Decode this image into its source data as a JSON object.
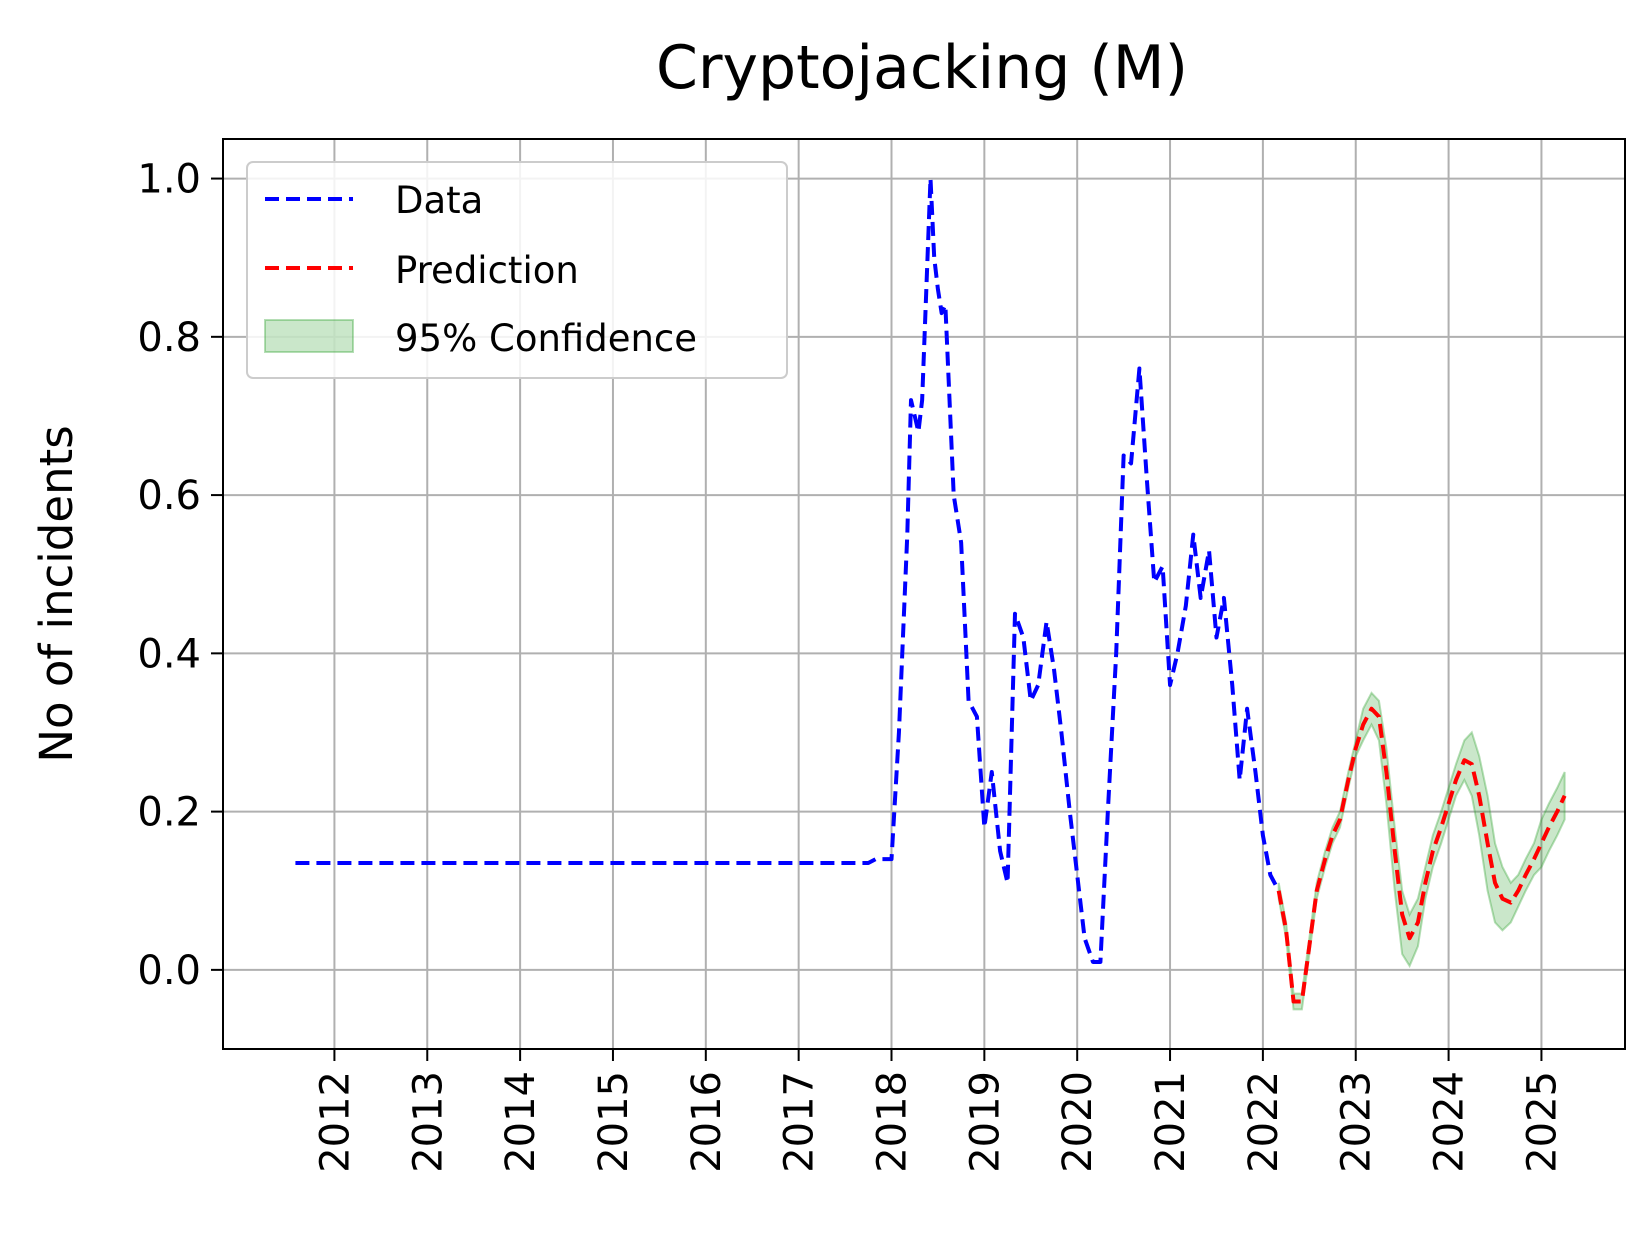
{
  "chart_data": {
    "type": "line",
    "title": "Cryptojacking (M)",
    "xlabel": "",
    "ylabel": "No of incidents",
    "xlim": [
      2010.8,
      2025.9
    ],
    "ylim": [
      -0.1,
      1.05
    ],
    "x_ticks": [
      "2012",
      "2013",
      "2014",
      "2015",
      "2016",
      "2017",
      "2018",
      "2019",
      "2020",
      "2021",
      "2022",
      "2023",
      "2024",
      "2025"
    ],
    "y_ticks": [
      "0.0",
      "0.2",
      "0.4",
      "0.6",
      "0.8",
      "1.0"
    ],
    "grid": true,
    "legend_position": "top-left",
    "legend": {
      "data": "Data",
      "prediction": "Prediction",
      "confidence": "95% Confidence"
    },
    "colors": {
      "data": "#0000ff",
      "prediction": "#ff0000",
      "confidence_fill": "#2ca02c",
      "grid": "#b0b0b0"
    },
    "series": [
      {
        "name": "Data",
        "x": [
          2011.58,
          2017.75,
          2017.83,
          2017.92,
          2018.0,
          2018.08,
          2018.17,
          2018.21,
          2018.25,
          2018.29,
          2018.33,
          2018.42,
          2018.46,
          2018.5,
          2018.54,
          2018.58,
          2018.67,
          2018.75,
          2018.83,
          2018.92,
          2019.0,
          2019.08,
          2019.17,
          2019.25,
          2019.33,
          2019.42,
          2019.5,
          2019.58,
          2019.67,
          2019.75,
          2019.83,
          2019.92,
          2020.0,
          2020.08,
          2020.17,
          2020.25,
          2020.33,
          2020.42,
          2020.5,
          2020.58,
          2020.67,
          2020.75,
          2020.83,
          2020.92,
          2021.0,
          2021.08,
          2021.17,
          2021.25,
          2021.33,
          2021.42,
          2021.5,
          2021.58,
          2021.67,
          2021.75,
          2021.83,
          2021.92,
          2022.0,
          2022.08,
          2022.17
        ],
        "y": [
          0.135,
          0.135,
          0.14,
          0.14,
          0.14,
          0.3,
          0.55,
          0.72,
          0.7,
          0.68,
          0.72,
          1.0,
          0.9,
          0.86,
          0.83,
          0.84,
          0.6,
          0.54,
          0.34,
          0.32,
          0.18,
          0.25,
          0.15,
          0.11,
          0.45,
          0.42,
          0.34,
          0.36,
          0.44,
          0.38,
          0.3,
          0.2,
          0.12,
          0.04,
          0.01,
          0.01,
          0.2,
          0.4,
          0.65,
          0.64,
          0.76,
          0.62,
          0.49,
          0.51,
          0.36,
          0.4,
          0.46,
          0.55,
          0.47,
          0.53,
          0.42,
          0.47,
          0.36,
          0.24,
          0.33,
          0.25,
          0.17,
          0.12,
          0.1
        ]
      },
      {
        "name": "Prediction",
        "x": [
          2022.17,
          2022.25,
          2022.33,
          2022.42,
          2022.5,
          2022.58,
          2022.67,
          2022.75,
          2022.83,
          2022.92,
          2023.0,
          2023.08,
          2023.17,
          2023.25,
          2023.33,
          2023.42,
          2023.5,
          2023.58,
          2023.67,
          2023.75,
          2023.83,
          2023.92,
          2024.0,
          2024.08,
          2024.17,
          2024.25,
          2024.33,
          2024.42,
          2024.5,
          2024.58,
          2024.67,
          2024.75,
          2024.83,
          2024.92,
          2025.0,
          2025.08,
          2025.17,
          2025.25
        ],
        "y": [
          0.1,
          0.05,
          -0.04,
          -0.04,
          0.03,
          0.1,
          0.14,
          0.17,
          0.19,
          0.24,
          0.28,
          0.31,
          0.33,
          0.32,
          0.25,
          0.15,
          0.07,
          0.04,
          0.06,
          0.11,
          0.15,
          0.18,
          0.21,
          0.24,
          0.265,
          0.26,
          0.22,
          0.16,
          0.11,
          0.09,
          0.085,
          0.1,
          0.12,
          0.14,
          0.16,
          0.18,
          0.2,
          0.22
        ],
        "lower": [
          0.09,
          0.04,
          -0.05,
          -0.05,
          0.02,
          0.09,
          0.13,
          0.16,
          0.18,
          0.23,
          0.27,
          0.29,
          0.31,
          0.29,
          0.21,
          0.1,
          0.02,
          0.005,
          0.03,
          0.09,
          0.13,
          0.16,
          0.19,
          0.22,
          0.24,
          0.22,
          0.17,
          0.1,
          0.06,
          0.05,
          0.06,
          0.08,
          0.1,
          0.12,
          0.13,
          0.15,
          0.17,
          0.19
        ],
        "upper": [
          0.11,
          0.06,
          -0.03,
          -0.03,
          0.04,
          0.11,
          0.15,
          0.18,
          0.2,
          0.25,
          0.29,
          0.33,
          0.35,
          0.34,
          0.28,
          0.18,
          0.1,
          0.07,
          0.09,
          0.13,
          0.17,
          0.2,
          0.23,
          0.26,
          0.29,
          0.3,
          0.27,
          0.22,
          0.16,
          0.13,
          0.11,
          0.12,
          0.14,
          0.16,
          0.19,
          0.21,
          0.23,
          0.25
        ]
      }
    ]
  }
}
